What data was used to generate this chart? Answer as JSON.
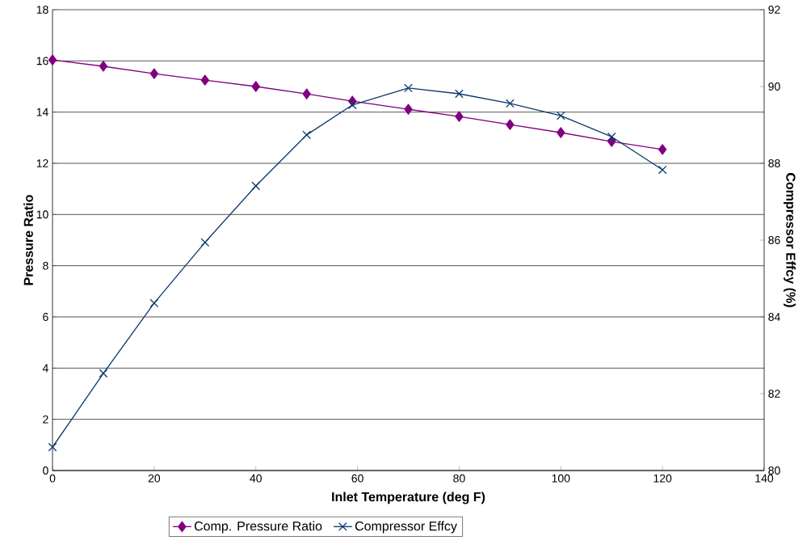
{
  "chart_data": {
    "type": "line",
    "xlabel": "Inlet Temperature (deg F)",
    "ylabel": "Pressure Ratio",
    "y2label": "Compressor Effcy (%)",
    "x": [
      0,
      10,
      20,
      30,
      40,
      50,
      59,
      70,
      80,
      90,
      100,
      110,
      120
    ],
    "series": [
      {
        "name": "Comp. Pressure Ratio",
        "color": "#800080",
        "marker": "diamond",
        "values": [
          16.04,
          15.79,
          15.5,
          15.25,
          15.0,
          14.71,
          14.43,
          14.11,
          13.83,
          13.51,
          13.2,
          12.85,
          12.54
        ]
      },
      {
        "name": "Compressor Effcy",
        "color": "#0b3a6b",
        "marker": "cross",
        "axis": "y2",
        "values": [
          80.61,
          82.53,
          84.36,
          85.94,
          87.41,
          88.74,
          89.52,
          89.96,
          89.81,
          89.56,
          89.24,
          88.69,
          87.83
        ]
      }
    ],
    "xlim": [
      0,
      140
    ],
    "xticks": [
      0,
      20,
      40,
      60,
      80,
      100,
      120,
      140
    ],
    "ylim": [
      0,
      18
    ],
    "yticks": [
      0,
      2,
      4,
      6,
      8,
      10,
      12,
      14,
      16,
      18
    ],
    "y2lim": [
      80,
      92
    ],
    "y2ticks": [
      80,
      82,
      84,
      86,
      88,
      90,
      92
    ],
    "grid": "y",
    "legend": "bottom",
    "line_style": "solid"
  }
}
